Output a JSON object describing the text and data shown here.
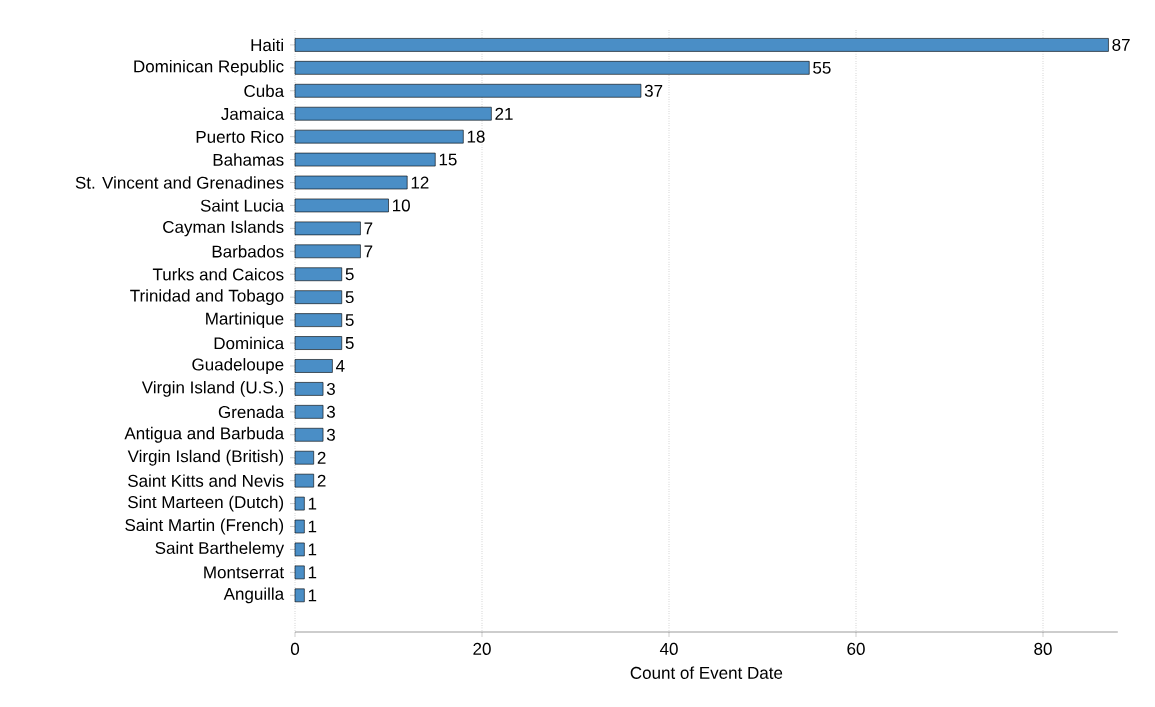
{
  "chart_data": {
    "type": "bar",
    "orientation": "horizontal",
    "xlabel": "Count of Event Date",
    "categories": [
      "Haiti",
      "Dominican Republic",
      "Cuba",
      "Jamaica",
      "Puerto Rico",
      "Bahamas",
      "St. Vincent and Grenadines",
      "Saint Lucia",
      "Cayman Islands",
      "Barbados",
      "Turks and Caicos",
      "Trinidad and Tobago",
      "Martinique",
      "Dominica",
      "Guadeloupe",
      "Virgin Island (U.S.)",
      "Grenada",
      "Antigua and Barbuda",
      "Virgin Island (British)",
      "Saint Kitts and Nevis",
      "Sint Marteen (Dutch)",
      "Saint Martin (French)",
      "Saint Barthelemy",
      "Montserrat",
      "Anguilla"
    ],
    "values": [
      87,
      55,
      37,
      21,
      18,
      15,
      12,
      10,
      7,
      7,
      5,
      5,
      5,
      5,
      4,
      3,
      3,
      3,
      2,
      2,
      1,
      1,
      1,
      1,
      1
    ],
    "color": "#4a8ec6",
    "data_labels": true,
    "grid": "x",
    "xlim": [
      0,
      88
    ],
    "xticks": [
      0,
      20,
      40,
      60,
      80
    ]
  }
}
